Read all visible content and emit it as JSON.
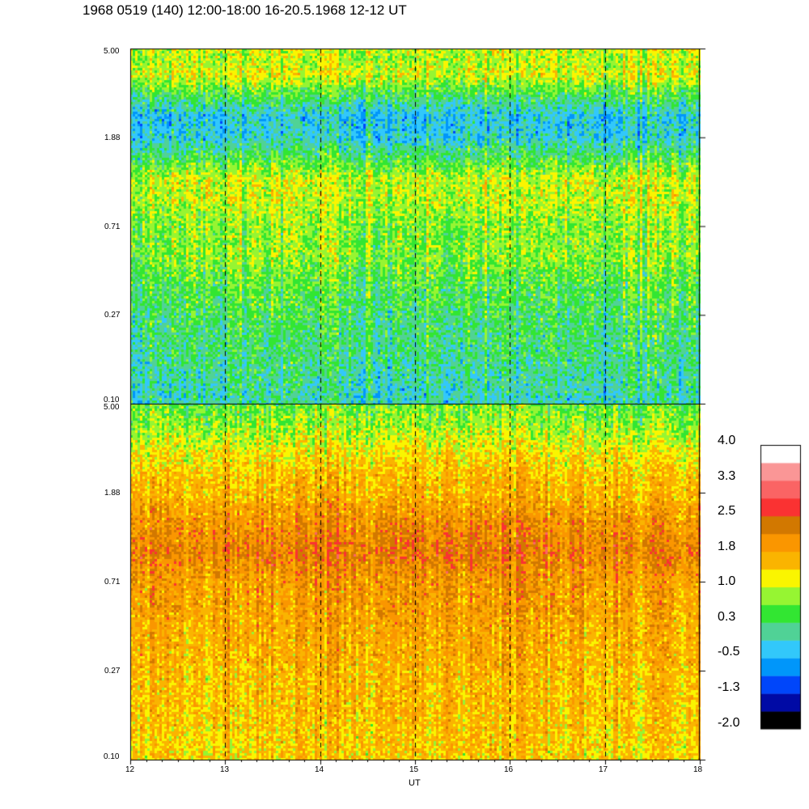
{
  "title": "1968 0519 (140) 12:00-18:00 16-20.5.1968  12-12 UT",
  "chart_data": {
    "type": "heatmap",
    "xlabel": "UT",
    "x_range": [
      12,
      18
    ],
    "x_ticks": [
      "12",
      "13",
      "14",
      "15",
      "16",
      "17",
      "18"
    ],
    "dashed_vertical_lines_at": [
      13,
      14,
      15,
      16,
      17
    ],
    "y_scale": "log",
    "panels": [
      {
        "name": "top",
        "y_range": [
          0.1,
          5.0
        ],
        "y_ticks": [
          "5.00",
          "1.88",
          "0.71",
          "0.27",
          "0.10"
        ],
        "value_profile_by_y": [
          {
            "y": 5.0,
            "value": 1.0
          },
          {
            "y": 4.5,
            "value": 0.9
          },
          {
            "y": 3.8,
            "value": 1.1
          },
          {
            "y": 3.0,
            "value": 0.3
          },
          {
            "y": 2.4,
            "value": -0.3
          },
          {
            "y": 1.88,
            "value": -0.2
          },
          {
            "y": 1.5,
            "value": 0.4
          },
          {
            "y": 1.2,
            "value": 1.0
          },
          {
            "y": 0.9,
            "value": 0.9
          },
          {
            "y": 0.71,
            "value": 0.7
          },
          {
            "y": 0.5,
            "value": 0.7
          },
          {
            "y": 0.35,
            "value": 0.4
          },
          {
            "y": 0.27,
            "value": 0.3
          },
          {
            "y": 0.15,
            "value": 0.1
          },
          {
            "y": 0.1,
            "value": -0.1
          }
        ]
      },
      {
        "name": "bottom",
        "y_range": [
          0.1,
          5.0
        ],
        "y_ticks": [
          "5.00",
          "1.88",
          "0.71",
          "0.27",
          "0.10"
        ],
        "value_profile_by_y": [
          {
            "y": 5.0,
            "value": 0.6
          },
          {
            "y": 4.0,
            "value": 0.8
          },
          {
            "y": 3.0,
            "value": 1.2
          },
          {
            "y": 2.2,
            "value": 1.6
          },
          {
            "y": 1.88,
            "value": 1.6
          },
          {
            "y": 1.4,
            "value": 2.0
          },
          {
            "y": 1.0,
            "value": 2.2
          },
          {
            "y": 0.71,
            "value": 1.9
          },
          {
            "y": 0.5,
            "value": 1.8
          },
          {
            "y": 0.27,
            "value": 1.6
          },
          {
            "y": 0.15,
            "value": 1.5
          },
          {
            "y": 0.1,
            "value": 1.4
          }
        ]
      }
    ],
    "colorbar": {
      "range": [
        -2.0,
        4.0
      ],
      "tick_labels": [
        "4.0",
        "3.3",
        "2.5",
        "1.8",
        "1.0",
        "0.3",
        "-0.5",
        "-1.3",
        "-2.0"
      ],
      "colors_low_to_high": [
        "#000000",
        "#000aa5",
        "#0046fa",
        "#0096fa",
        "#32c8fa",
        "#50d296",
        "#32e632",
        "#96f532",
        "#faf500",
        "#fab400",
        "#fa9600",
        "#d27800",
        "#fa3232",
        "#fa6464",
        "#fa9696",
        "#ffffff"
      ]
    }
  }
}
